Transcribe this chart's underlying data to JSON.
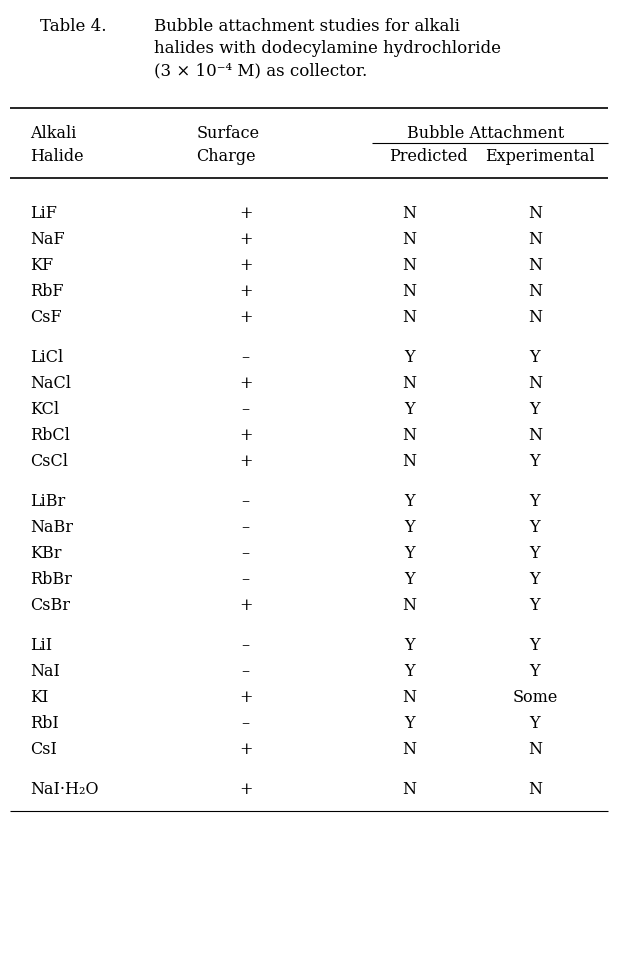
{
  "title_label": "Table 4.",
  "title_rest": [
    "Bubble attachment studies for alkali",
    "halides with dodecylamine hydrochloride",
    "(3 × 10⁻⁴ M) as collector."
  ],
  "header_col1_line1": "Alkali",
  "header_col1_line2": "Halide",
  "header_col2_line1": "Surface",
  "header_col2_line2": "Charge",
  "header_span": "Bubble Attachment",
  "header_sub1": "Predicted",
  "header_sub2": "Experimental",
  "rows": [
    [
      "LiF",
      "+",
      "N",
      "N"
    ],
    [
      "NaF",
      "+",
      "N",
      "N"
    ],
    [
      "KF",
      "+",
      "N",
      "N"
    ],
    [
      "RbF",
      "+",
      "N",
      "N"
    ],
    [
      "CsF",
      "+",
      "N",
      "N"
    ],
    [
      "LiCl",
      "–",
      "Y",
      "Y"
    ],
    [
      "NaCl",
      "+",
      "N",
      "N"
    ],
    [
      "KCl",
      "–",
      "Y",
      "Y"
    ],
    [
      "RbCl",
      "+",
      "N",
      "N"
    ],
    [
      "CsCl",
      "+",
      "N",
      "Y"
    ],
    [
      "LiBr",
      "–",
      "Y",
      "Y"
    ],
    [
      "NaBr",
      "–",
      "Y",
      "Y"
    ],
    [
      "KBr",
      "–",
      "Y",
      "Y"
    ],
    [
      "RbBr",
      "–",
      "Y",
      "Y"
    ],
    [
      "CsBr",
      "+",
      "N",
      "Y"
    ],
    [
      "LiI",
      "–",
      "Y",
      "Y"
    ],
    [
      "NaI",
      "–",
      "Y",
      "Y"
    ],
    [
      "KI",
      "+",
      "N",
      "Some"
    ],
    [
      "RbI",
      "–",
      "Y",
      "Y"
    ],
    [
      "CsI",
      "+",
      "N",
      "N"
    ],
    [
      "NaI·H₂O",
      "+",
      "N",
      "N"
    ]
  ],
  "group_breaks_after": [
    4,
    9,
    14,
    19
  ],
  "bg_color": "#ffffff",
  "text_color": "#000000",
  "font_size": 11.5,
  "title_font_size": 12
}
